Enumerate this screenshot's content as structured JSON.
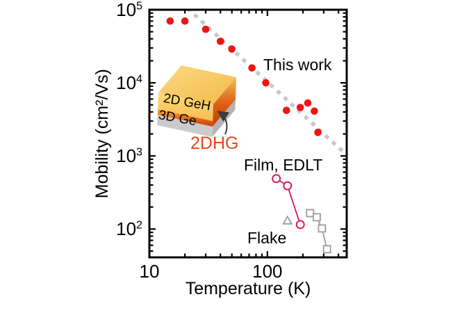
{
  "figure": {
    "background": "#ffffff"
  },
  "chart_data": {
    "type": "scatter",
    "title": "",
    "xlabel": "Temperature (K)",
    "ylabel": "Mobility (cm²/Vs)",
    "x_scale": "log",
    "y_scale": "log",
    "xlim": [
      10,
      470
    ],
    "ylim": [
      41,
      100000
    ],
    "grid": false,
    "legend_position": "none",
    "x_major_ticks": [
      {
        "value": 10,
        "label": "10"
      },
      {
        "value": 100,
        "label": "100"
      }
    ],
    "y_major_ticks": [
      {
        "value": 100,
        "exponent": 2
      },
      {
        "value": 1000,
        "exponent": 3
      },
      {
        "value": 10000,
        "exponent": 4
      },
      {
        "value": 100000,
        "exponent": 5
      }
    ],
    "series": [
      {
        "name": "This work",
        "marker": "filled-circle",
        "color": "#ed1515",
        "connected": false,
        "points": [
          [
            15,
            70000
          ],
          [
            20,
            70000
          ],
          [
            30,
            54000
          ],
          [
            40,
            37000
          ],
          [
            50,
            29000
          ],
          [
            74,
            16000
          ],
          [
            97,
            10000
          ],
          [
            145,
            4200
          ],
          [
            190,
            4600
          ],
          [
            220,
            5300
          ],
          [
            250,
            4100
          ],
          [
            268,
            2100
          ]
        ]
      },
      {
        "name": "Film EDLT",
        "marker": "open-circle",
        "color": "#d6195f",
        "connected": true,
        "points": [
          [
            119,
            490
          ],
          [
            148,
            390
          ],
          [
            190,
            115
          ]
        ]
      },
      {
        "name": "Flake triangle",
        "marker": "open-triangle",
        "color": "#9b9b9b",
        "connected": false,
        "points": [
          [
            148,
            130
          ]
        ]
      },
      {
        "name": "Flake squares",
        "marker": "open-square",
        "color": "#9b9b9b",
        "connected": true,
        "points": [
          [
            230,
            165
          ],
          [
            262,
            145
          ],
          [
            290,
            102
          ],
          [
            320,
            53
          ]
        ]
      }
    ],
    "trend_line": {
      "style": "dashed",
      "color": "#c9c9c9",
      "slope": "~T^-1.5",
      "points": [
        [
          21,
          105000
        ],
        [
          450,
          1100
        ]
      ]
    },
    "annotations": {
      "this_work": {
        "text": "This work",
        "color": "#000000"
      },
      "film_edlt": {
        "text": "Film, EDLT",
        "color": "#000000"
      },
      "flake": {
        "text": "Flake",
        "color": "#000000"
      },
      "dhg": {
        "text": "2DHG",
        "color": "#e8461c"
      }
    }
  },
  "inset": {
    "top_layer_label": "2D GeH",
    "bottom_layer_label": "3D Ge",
    "colors": {
      "top_layer": "#f7c95f",
      "interface": "#d9570f",
      "bottom_layer": "#c6c6c6"
    }
  }
}
